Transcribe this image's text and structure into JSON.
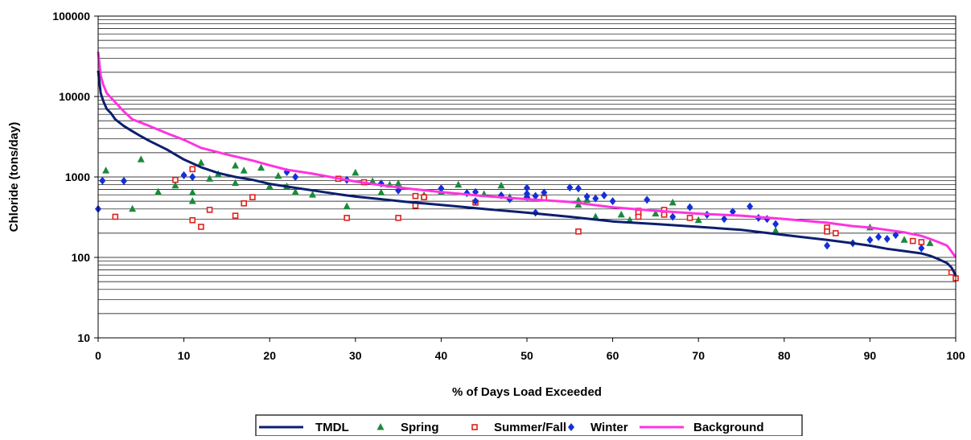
{
  "chart_data": {
    "type": "line",
    "title": "",
    "xlabel": "% of Days Load Exceeded",
    "ylabel": "Chloride (tons/day)",
    "xlim": [
      0,
      100
    ],
    "ylim": [
      10,
      100000
    ],
    "yscale": "log",
    "x_ticks": [
      0,
      10,
      20,
      30,
      40,
      50,
      60,
      70,
      80,
      90,
      100
    ],
    "y_ticks": [
      10,
      100,
      1000,
      10000,
      100000
    ],
    "grid": "horizontal minor (log)",
    "legend_position": "bottom",
    "colors": {
      "TMDL": "#0b1f6e",
      "Spring": "#1a8a3a",
      "Summer/Fall": "#e0201b",
      "Winter": "#1230d8",
      "Background": "#ff33e0"
    },
    "series": [
      {
        "name": "TMDL",
        "kind": "line",
        "x": [
          0,
          0.3,
          0.6,
          1,
          1.5,
          2,
          3,
          4,
          5,
          6,
          8,
          10,
          12,
          14,
          16,
          18,
          20,
          22,
          25,
          28,
          30,
          33,
          36,
          40,
          45,
          50,
          55,
          60,
          65,
          70,
          75,
          80,
          85,
          88,
          90,
          92,
          94,
          96,
          97,
          98,
          99,
          99.5,
          100
        ],
        "y": [
          21000,
          11000,
          8800,
          7000,
          6200,
          5200,
          4300,
          3700,
          3200,
          2800,
          2200,
          1650,
          1320,
          1120,
          1000,
          920,
          820,
          760,
          680,
          610,
          570,
          530,
          490,
          450,
          400,
          360,
          320,
          280,
          260,
          240,
          220,
          190,
          165,
          150,
          140,
          128,
          120,
          112,
          105,
          95,
          85,
          75,
          60
        ]
      },
      {
        "name": "Background",
        "kind": "line",
        "x": [
          0,
          0.3,
          0.6,
          1,
          2,
          3,
          4,
          6,
          8,
          10,
          12,
          15,
          18,
          20,
          22,
          25,
          28,
          30,
          33,
          36,
          40,
          45,
          50,
          55,
          60,
          65,
          70,
          75,
          80,
          85,
          88,
          90,
          92,
          94,
          96,
          97,
          98,
          99,
          99.6,
          100
        ],
        "y": [
          36000,
          18000,
          14000,
          11000,
          8500,
          6500,
          5200,
          4300,
          3500,
          2900,
          2300,
          1900,
          1600,
          1400,
          1230,
          1100,
          960,
          880,
          790,
          720,
          650,
          580,
          530,
          490,
          420,
          380,
          350,
          330,
          300,
          270,
          245,
          235,
          220,
          205,
          185,
          170,
          155,
          140,
          115,
          100
        ]
      },
      {
        "name": "Spring",
        "kind": "marker",
        "marker": "triangle",
        "x": [
          0.9,
          4,
          5,
          7,
          9,
          11,
          11,
          12,
          13,
          14,
          16,
          16,
          17,
          19,
          20,
          21,
          22,
          23,
          25,
          29,
          30,
          32,
          33,
          34,
          35,
          38,
          40,
          42,
          43,
          45,
          47,
          48,
          50,
          56,
          56,
          57,
          58,
          61,
          62,
          63,
          65,
          66,
          67,
          70,
          79,
          90,
          94,
          97
        ],
        "y": [
          1200,
          400,
          1650,
          650,
          780,
          640,
          500,
          1500,
          950,
          1080,
          1380,
          840,
          1200,
          1300,
          760,
          1030,
          760,
          650,
          600,
          430,
          1130,
          880,
          640,
          800,
          830,
          590,
          650,
          800,
          640,
          610,
          780,
          560,
          590,
          510,
          450,
          520,
          320,
          340,
          290,
          360,
          350,
          360,
          480,
          290,
          215,
          235,
          165,
          150
        ]
      },
      {
        "name": "Summer/Fall",
        "kind": "marker",
        "marker": "square",
        "x": [
          2,
          9,
          11,
          11,
          12,
          13,
          16,
          17,
          18,
          28,
          29,
          31,
          35,
          37,
          37,
          38,
          44,
          52,
          56,
          63,
          63,
          63,
          66,
          66,
          69,
          85,
          85,
          86,
          95,
          96,
          99.5,
          100
        ],
        "y": [
          320,
          920,
          1250,
          290,
          240,
          390,
          330,
          470,
          560,
          950,
          310,
          860,
          310,
          580,
          440,
          560,
          480,
          550,
          210,
          380,
          360,
          320,
          390,
          340,
          310,
          235,
          210,
          200,
          160,
          155,
          65,
          55
        ]
      },
      {
        "name": "Winter",
        "kind": "marker",
        "marker": "diamond",
        "x": [
          0,
          0.5,
          3,
          10,
          11,
          22,
          23,
          29,
          33,
          35,
          40,
          43,
          44,
          44,
          47,
          48,
          50,
          50,
          50,
          51,
          51,
          52,
          55,
          56,
          57,
          58,
          59,
          60,
          64,
          67,
          69,
          71,
          73,
          74,
          76,
          77,
          78,
          79,
          85,
          88,
          90,
          91,
          92,
          93,
          96
        ],
        "y": [
          400,
          900,
          890,
          1050,
          1000,
          1150,
          1000,
          920,
          830,
          680,
          720,
          630,
          650,
          500,
          590,
          530,
          730,
          620,
          560,
          580,
          360,
          640,
          740,
          720,
          570,
          540,
          590,
          500,
          520,
          320,
          420,
          340,
          300,
          370,
          430,
          310,
          300,
          260,
          140,
          150,
          165,
          180,
          170,
          190,
          130
        ]
      }
    ]
  }
}
